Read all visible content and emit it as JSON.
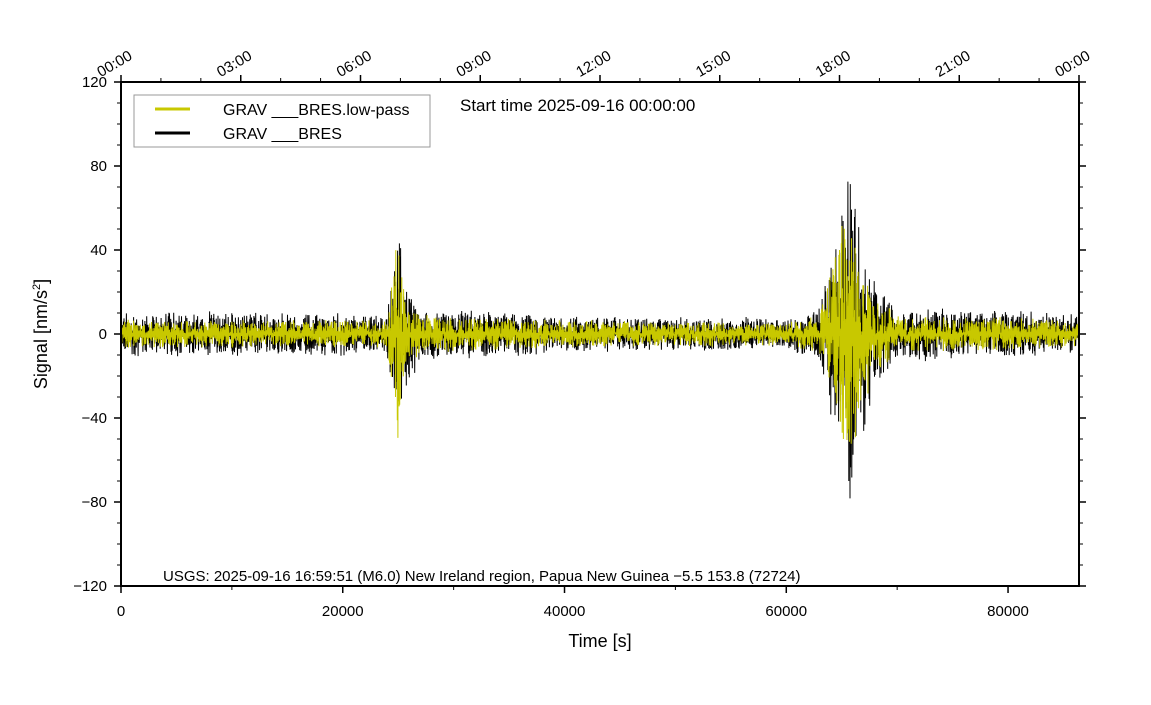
{
  "chart_data": {
    "type": "line",
    "title": "Start time 2025-09-16 00:00:00",
    "xlabel": "Time [s]",
    "ylabel_main": "Signal [nm/s",
    "ylabel_sup": "2",
    "ylabel_end": "]",
    "xlim": [
      0,
      86400
    ],
    "ylim": [
      -120,
      120
    ],
    "x_ticks": [
      0,
      20000,
      40000,
      60000,
      80000
    ],
    "x_tick_labels": [
      "0",
      "20000",
      "40000",
      "60000",
      "80000"
    ],
    "y_ticks": [
      -120,
      -80,
      -40,
      0,
      40,
      80,
      120
    ],
    "y_tick_labels": [
      "−120",
      "−80",
      "−40",
      "0",
      "40",
      "80",
      "120"
    ],
    "top_ticks_hours": [
      0,
      3,
      6,
      9,
      12,
      15,
      18,
      21,
      24
    ],
    "top_tick_labels": [
      "00:00",
      "03:00",
      "06:00",
      "09:00",
      "12:00",
      "15:00",
      "18:00",
      "21:00",
      "00:00"
    ],
    "annotation": "USGS: 2025-09-16 16:59:51 (M6.0) New Ireland region, Papua New Guinea −5.5 153.8 (72724)",
    "legend_placement": "top-left",
    "series": [
      {
        "name": "GRAV ___BRES",
        "color": "#000000",
        "envelope": [
          [
            0,
            11
          ],
          [
            2000,
            10
          ],
          [
            24000,
            9
          ],
          [
            24800,
            45
          ],
          [
            25000,
            50
          ],
          [
            25600,
            25
          ],
          [
            27000,
            12
          ],
          [
            40000,
            8
          ],
          [
            60000,
            7
          ],
          [
            63000,
            12
          ],
          [
            65000,
            60
          ],
          [
            65600,
            92
          ],
          [
            66200,
            60
          ],
          [
            68000,
            25
          ],
          [
            70000,
            12
          ],
          [
            80000,
            10
          ],
          [
            86400,
            9
          ]
        ]
      },
      {
        "name": "GRAV ___BRES.low-pass",
        "color": "#c8c800",
        "envelope": [
          [
            0,
            7
          ],
          [
            2000,
            6
          ],
          [
            24000,
            6
          ],
          [
            24800,
            38
          ],
          [
            25000,
            48
          ],
          [
            25600,
            18
          ],
          [
            27000,
            8
          ],
          [
            40000,
            6
          ],
          [
            60000,
            5
          ],
          [
            63000,
            9
          ],
          [
            65000,
            50
          ],
          [
            65600,
            68
          ],
          [
            66200,
            45
          ],
          [
            68000,
            18
          ],
          [
            70000,
            8
          ],
          [
            80000,
            7
          ],
          [
            86400,
            6
          ]
        ]
      }
    ]
  }
}
